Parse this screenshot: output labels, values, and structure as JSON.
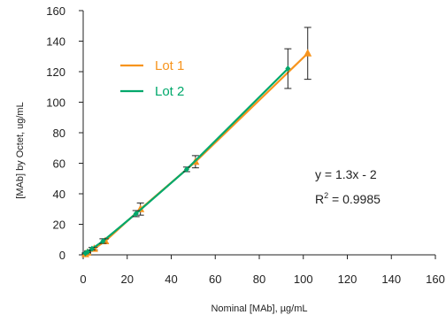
{
  "chart_data": {
    "type": "scatter",
    "title": "",
    "xlabel": "Nominal [MAb], µg/mL",
    "ylabel": "[MAb] by Octet, ug/mL",
    "xlim": [
      0,
      160
    ],
    "ylim": [
      0,
      160
    ],
    "x_ticks": [
      "0",
      "20",
      "40",
      "60",
      "80",
      "100",
      "120",
      "140",
      "160"
    ],
    "y_ticks": [
      "0",
      "20",
      "40",
      "60",
      "80",
      "100",
      "120",
      "140",
      "160"
    ],
    "grid": false,
    "legend": "top-left",
    "series": [
      {
        "name": "Lot 1",
        "color": "#f7941d",
        "marker": "triangle",
        "points": [
          {
            "x": 1,
            "y": 0.5,
            "err": 0.3
          },
          {
            "x": 2,
            "y": 1.5,
            "err": 0.5
          },
          {
            "x": 5,
            "y": 4,
            "err": 0.8
          },
          {
            "x": 10,
            "y": 9,
            "err": 1.5
          },
          {
            "x": 26,
            "y": 30,
            "err": 4
          },
          {
            "x": 51,
            "y": 61,
            "err": 4
          },
          {
            "x": 102,
            "y": 132,
            "err": 17
          }
        ]
      },
      {
        "name": "Lot 2",
        "color": "#00a86b",
        "marker": "diamond",
        "points": [
          {
            "x": 1,
            "y": 1,
            "err": 0.3
          },
          {
            "x": 2,
            "y": 2,
            "err": 0.5
          },
          {
            "x": 4,
            "y": 4,
            "err": 0.8
          },
          {
            "x": 9,
            "y": 9,
            "err": 1.5
          },
          {
            "x": 24,
            "y": 27,
            "err": 2
          },
          {
            "x": 47,
            "y": 56,
            "err": 1.5
          },
          {
            "x": 93,
            "y": 122,
            "err": 13
          }
        ]
      }
    ],
    "annotations": {
      "equation": "y = 1.3x - 2",
      "r2_label": "R",
      "r2_sup": "2",
      "r2_value": " = 0.9985"
    }
  }
}
